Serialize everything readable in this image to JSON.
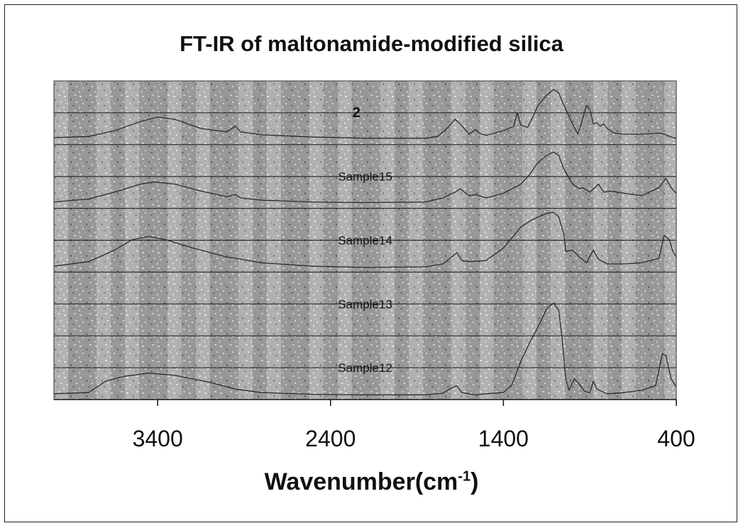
{
  "chart_data": {
    "type": "line",
    "title": "FT-IR of maltonamide-modified silica",
    "xlabel": "Wavenumber(cm",
    "xlabel_sup": "-1",
    "xlabel_tail": ")",
    "ylabel": "",
    "xlim": [
      4000,
      400
    ],
    "x_reversed": true,
    "xticks": [
      {
        "value": 3400,
        "label": "3400"
      },
      {
        "value": 2400,
        "label": "2400"
      },
      {
        "value": 1400,
        "label": "1400"
      },
      {
        "value": 400,
        "label": "400"
      }
    ],
    "grid": true,
    "colors": {
      "line": "#2a2a2a",
      "band_dark": "#8a8a8a",
      "band_light": "#d8d8d8",
      "gridline": "#1a1a1a"
    },
    "series": [
      {
        "name": "2",
        "label_x": 2250,
        "points": [
          [
            4000,
            0.06
          ],
          [
            3800,
            0.08
          ],
          [
            3650,
            0.18
          ],
          [
            3500,
            0.34
          ],
          [
            3400,
            0.42
          ],
          [
            3300,
            0.38
          ],
          [
            3150,
            0.22
          ],
          [
            3000,
            0.16
          ],
          [
            2950,
            0.26
          ],
          [
            2920,
            0.16
          ],
          [
            2800,
            0.11
          ],
          [
            2500,
            0.07
          ],
          [
            2200,
            0.05
          ],
          [
            1850,
            0.05
          ],
          [
            1780,
            0.08
          ],
          [
            1720,
            0.24
          ],
          [
            1680,
            0.38
          ],
          [
            1650,
            0.3
          ],
          [
            1600,
            0.12
          ],
          [
            1560,
            0.2
          ],
          [
            1540,
            0.14
          ],
          [
            1500,
            0.1
          ],
          [
            1450,
            0.14
          ],
          [
            1400,
            0.18
          ],
          [
            1340,
            0.26
          ],
          [
            1320,
            0.5
          ],
          [
            1300,
            0.28
          ],
          [
            1260,
            0.24
          ],
          [
            1230,
            0.42
          ],
          [
            1200,
            0.62
          ],
          [
            1150,
            0.8
          ],
          [
            1110,
            0.9
          ],
          [
            1080,
            0.84
          ],
          [
            1050,
            0.62
          ],
          [
            1000,
            0.3
          ],
          [
            970,
            0.12
          ],
          [
            950,
            0.3
          ],
          [
            920,
            0.62
          ],
          [
            900,
            0.55
          ],
          [
            880,
            0.3
          ],
          [
            860,
            0.32
          ],
          [
            840,
            0.26
          ],
          [
            820,
            0.3
          ],
          [
            800,
            0.22
          ],
          [
            760,
            0.14
          ],
          [
            700,
            0.12
          ],
          [
            600,
            0.12
          ],
          [
            500,
            0.14
          ],
          [
            470,
            0.12
          ],
          [
            420,
            0.06
          ],
          [
            400,
            0.05
          ]
        ]
      },
      {
        "name": "Sample15",
        "label_x": 2200,
        "points": [
          [
            4000,
            0.05
          ],
          [
            3800,
            0.1
          ],
          [
            3650,
            0.22
          ],
          [
            3500,
            0.36
          ],
          [
            3420,
            0.4
          ],
          [
            3300,
            0.36
          ],
          [
            3150,
            0.24
          ],
          [
            3000,
            0.14
          ],
          [
            2950,
            0.18
          ],
          [
            2920,
            0.12
          ],
          [
            2800,
            0.08
          ],
          [
            2500,
            0.05
          ],
          [
            2200,
            0.04
          ],
          [
            1850,
            0.05
          ],
          [
            1750,
            0.12
          ],
          [
            1680,
            0.22
          ],
          [
            1650,
            0.28
          ],
          [
            1600,
            0.16
          ],
          [
            1560,
            0.18
          ],
          [
            1500,
            0.12
          ],
          [
            1450,
            0.16
          ],
          [
            1400,
            0.2
          ],
          [
            1300,
            0.36
          ],
          [
            1250,
            0.52
          ],
          [
            1200,
            0.74
          ],
          [
            1150,
            0.86
          ],
          [
            1110,
            0.92
          ],
          [
            1080,
            0.86
          ],
          [
            1050,
            0.62
          ],
          [
            1000,
            0.36
          ],
          [
            960,
            0.28
          ],
          [
            940,
            0.3
          ],
          [
            900,
            0.22
          ],
          [
            850,
            0.36
          ],
          [
            820,
            0.22
          ],
          [
            780,
            0.24
          ],
          [
            700,
            0.2
          ],
          [
            600,
            0.16
          ],
          [
            500,
            0.3
          ],
          [
            460,
            0.46
          ],
          [
            430,
            0.3
          ],
          [
            400,
            0.2
          ]
        ]
      },
      {
        "name": "Sample14",
        "label_x": 2200,
        "points": [
          [
            4000,
            0.04
          ],
          [
            3800,
            0.12
          ],
          [
            3650,
            0.32
          ],
          [
            3550,
            0.5
          ],
          [
            3450,
            0.56
          ],
          [
            3350,
            0.5
          ],
          [
            3200,
            0.36
          ],
          [
            3000,
            0.2
          ],
          [
            2950,
            0.18
          ],
          [
            2800,
            0.1
          ],
          [
            2500,
            0.04
          ],
          [
            2200,
            0.02
          ],
          [
            1850,
            0.03
          ],
          [
            1750,
            0.08
          ],
          [
            1700,
            0.2
          ],
          [
            1670,
            0.28
          ],
          [
            1640,
            0.14
          ],
          [
            1600,
            0.12
          ],
          [
            1500,
            0.14
          ],
          [
            1400,
            0.36
          ],
          [
            1300,
            0.72
          ],
          [
            1250,
            0.82
          ],
          [
            1200,
            0.9
          ],
          [
            1150,
            0.96
          ],
          [
            1110,
            0.98
          ],
          [
            1080,
            0.9
          ],
          [
            1050,
            0.6
          ],
          [
            1040,
            0.3
          ],
          [
            1000,
            0.32
          ],
          [
            960,
            0.2
          ],
          [
            920,
            0.1
          ],
          [
            880,
            0.32
          ],
          [
            850,
            0.16
          ],
          [
            800,
            0.08
          ],
          [
            700,
            0.08
          ],
          [
            600,
            0.1
          ],
          [
            500,
            0.18
          ],
          [
            470,
            0.58
          ],
          [
            440,
            0.5
          ],
          [
            420,
            0.3
          ],
          [
            400,
            0.2
          ]
        ]
      },
      {
        "name": "Sample13",
        "label_x": 2200,
        "points": []
      },
      {
        "name": "Sample12",
        "label_x": 2200,
        "points": [
          [
            4000,
            0.04
          ],
          [
            3800,
            0.06
          ],
          [
            3700,
            0.26
          ],
          [
            3600,
            0.34
          ],
          [
            3450,
            0.4
          ],
          [
            3300,
            0.36
          ],
          [
            3100,
            0.24
          ],
          [
            2950,
            0.12
          ],
          [
            2800,
            0.06
          ],
          [
            2500,
            0.03
          ],
          [
            2200,
            0.02
          ],
          [
            1850,
            0.02
          ],
          [
            1750,
            0.05
          ],
          [
            1700,
            0.14
          ],
          [
            1670,
            0.18
          ],
          [
            1640,
            0.06
          ],
          [
            1560,
            0.02
          ],
          [
            1500,
            0.04
          ],
          [
            1400,
            0.06
          ],
          [
            1350,
            0.2
          ],
          [
            1300,
            0.6
          ],
          [
            1250,
            0.92
          ],
          [
            1200,
            1.2
          ],
          [
            1150,
            1.52
          ],
          [
            1110,
            1.62
          ],
          [
            1080,
            1.5
          ],
          [
            1060,
            1.0
          ],
          [
            1040,
            0.3
          ],
          [
            1020,
            0.1
          ],
          [
            990,
            0.3
          ],
          [
            960,
            0.2
          ],
          [
            930,
            0.08
          ],
          [
            900,
            0.06
          ],
          [
            880,
            0.26
          ],
          [
            860,
            0.12
          ],
          [
            800,
            0.04
          ],
          [
            700,
            0.06
          ],
          [
            600,
            0.1
          ],
          [
            520,
            0.18
          ],
          [
            480,
            0.74
          ],
          [
            460,
            0.7
          ],
          [
            430,
            0.3
          ],
          [
            400,
            0.16
          ]
        ]
      }
    ]
  }
}
